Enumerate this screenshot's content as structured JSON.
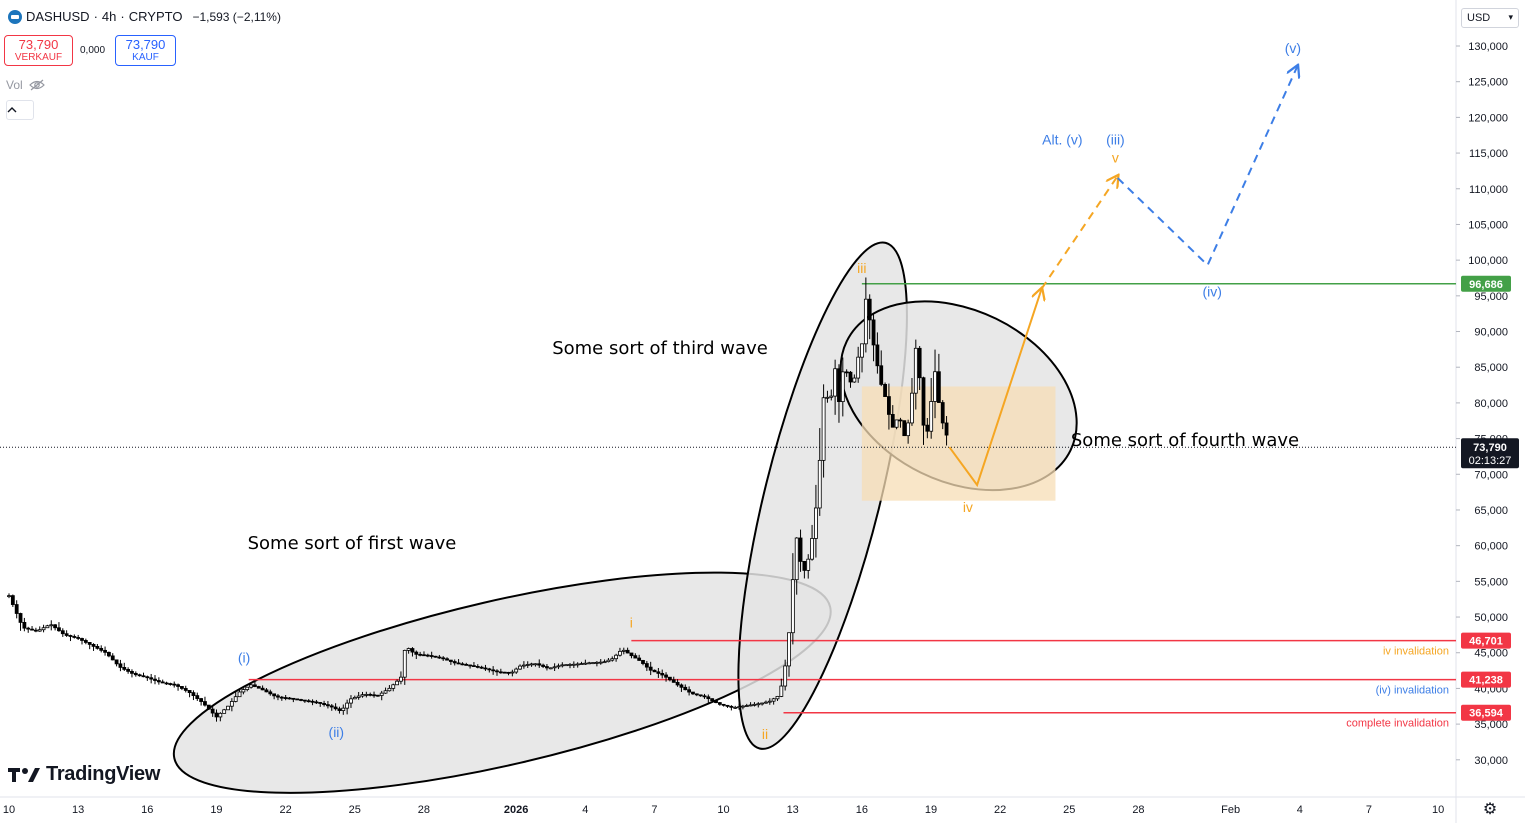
{
  "header": {
    "symbol": "DASHUSD",
    "separator": "·",
    "interval": "4h",
    "exchange": "CRYPTO",
    "change": "−1,593 (−2,11%)"
  },
  "trade": {
    "sell_price": "73,790",
    "sell_label": "VERKAUF",
    "spread": "0,000",
    "buy_price": "73,790",
    "buy_label": "KAUF"
  },
  "indicators": {
    "vol_label": "Vol",
    "collapse_icon": "chevron-up-icon"
  },
  "currency": "USD",
  "branding": {
    "logo_text": "TradingView"
  },
  "colors": {
    "bull": "#000000",
    "bear": "#000000",
    "green_level": "#43a047",
    "red_level": "#f23645",
    "orange": "#f5a623",
    "blue": "#3d7ee6",
    "ellipse_fill": "#e4e4e4",
    "box_fill": "#f7ddb5"
  },
  "chart_data": {
    "type": "candlestick",
    "title": "",
    "y_unit": "USD",
    "ylim": [
      25000,
      135000
    ],
    "yticks": [
      30000,
      35000,
      40000,
      45000,
      50000,
      55000,
      60000,
      65000,
      70000,
      75000,
      80000,
      85000,
      90000,
      95000,
      100000,
      105000,
      110000,
      115000,
      120000,
      125000,
      130000
    ],
    "ytick_labels": [
      "30,000",
      "35,000",
      "40,000",
      "45,000",
      "50,000",
      "55,000",
      "60,000",
      "65,000",
      "70,000",
      "75,000",
      "80,000",
      "85,000",
      "90,000",
      "95,000",
      "100,000",
      "105,000",
      "110,000",
      "115,000",
      "120,000",
      "125,000",
      "130,000"
    ],
    "x_axis": {
      "start_day": 10,
      "end_day": 41,
      "ticks": [
        {
          "day": 10,
          "label": "10"
        },
        {
          "day": 13,
          "label": "13"
        },
        {
          "day": 16,
          "label": "16"
        },
        {
          "day": 19,
          "label": "19"
        },
        {
          "day": 22,
          "label": "22"
        },
        {
          "day": 25,
          "label": "25"
        },
        {
          "day": 28,
          "label": "28"
        },
        {
          "day": 32,
          "label": "2026"
        },
        {
          "day": 35,
          "label": "4"
        },
        {
          "day": 38,
          "label": "7"
        },
        {
          "day": 41,
          "label": "10"
        },
        {
          "day": 44,
          "label": "13"
        },
        {
          "day": 47,
          "label": "16"
        },
        {
          "day": 50,
          "label": "19"
        },
        {
          "day": 53,
          "label": "22"
        },
        {
          "day": 56,
          "label": "25"
        },
        {
          "day": 59,
          "label": "28"
        },
        {
          "day": 63,
          "label": "Feb"
        },
        {
          "day": 66,
          "label": "4"
        },
        {
          "day": 69,
          "label": "7"
        },
        {
          "day": 72,
          "label": "10"
        }
      ]
    },
    "price_path": [
      [
        10.0,
        53000
      ],
      [
        10.6,
        48500
      ],
      [
        11.2,
        48000
      ],
      [
        11.8,
        49000
      ],
      [
        12.4,
        47500
      ],
      [
        13.0,
        47000
      ],
      [
        13.6,
        46000
      ],
      [
        14.2,
        45000
      ],
      [
        14.8,
        43000
      ],
      [
        15.4,
        42000
      ],
      [
        16.0,
        41500
      ],
      [
        16.6,
        40800
      ],
      [
        17.2,
        40500
      ],
      [
        17.8,
        39500
      ],
      [
        18.4,
        38000
      ],
      [
        19.0,
        36000
      ],
      [
        19.5,
        37500
      ],
      [
        20.0,
        39500
      ],
      [
        20.5,
        40500
      ],
      [
        21.0,
        39800
      ],
      [
        21.6,
        38800
      ],
      [
        22.2,
        38600
      ],
      [
        22.8,
        38300
      ],
      [
        23.4,
        38000
      ],
      [
        24.0,
        37400
      ],
      [
        24.4,
        36800
      ],
      [
        24.8,
        38500
      ],
      [
        25.4,
        39200
      ],
      [
        26.0,
        39000
      ],
      [
        26.5,
        40000
      ],
      [
        27.0,
        41500
      ],
      [
        27.2,
        46000
      ],
      [
        27.6,
        44800
      ],
      [
        28.2,
        44600
      ],
      [
        28.8,
        44200
      ],
      [
        29.4,
        43500
      ],
      [
        30.0,
        43200
      ],
      [
        30.6,
        42800
      ],
      [
        31.2,
        42300
      ],
      [
        31.8,
        42200
      ],
      [
        32.2,
        43200
      ],
      [
        32.8,
        43500
      ],
      [
        33.4,
        42800
      ],
      [
        34.0,
        43300
      ],
      [
        34.6,
        43400
      ],
      [
        35.2,
        43600
      ],
      [
        35.8,
        43700
      ],
      [
        36.2,
        44200
      ],
      [
        36.6,
        45500
      ],
      [
        37.0,
        44600
      ],
      [
        37.4,
        43800
      ],
      [
        37.8,
        42600
      ],
      [
        38.4,
        41800
      ],
      [
        39.0,
        40500
      ],
      [
        39.6,
        39300
      ],
      [
        40.2,
        38800
      ],
      [
        40.8,
        37800
      ],
      [
        41.4,
        37300
      ],
      [
        42.0,
        37600
      ],
      [
        42.6,
        37900
      ],
      [
        43.0,
        38200
      ],
      [
        43.4,
        39000
      ],
      [
        43.6,
        41500
      ],
      [
        43.8,
        46000
      ],
      [
        44.0,
        55000
      ],
      [
        44.2,
        62000
      ],
      [
        44.4,
        56000
      ],
      [
        44.6,
        57000
      ],
      [
        44.8,
        60000
      ],
      [
        45.0,
        65000
      ],
      [
        45.2,
        73000
      ],
      [
        45.4,
        84000
      ],
      [
        45.6,
        78000
      ],
      [
        45.8,
        86000
      ],
      [
        46.0,
        80000
      ],
      [
        46.2,
        85000
      ],
      [
        46.4,
        84000
      ],
      [
        46.6,
        82000
      ],
      [
        46.8,
        86000
      ],
      [
        47.0,
        88000
      ],
      [
        47.2,
        95500
      ],
      [
        47.4,
        90000
      ],
      [
        47.6,
        86500
      ],
      [
        47.8,
        83000
      ],
      [
        48.0,
        81000
      ],
      [
        48.2,
        78000
      ],
      [
        48.4,
        76000
      ],
      [
        48.6,
        79000
      ],
      [
        48.8,
        75000
      ],
      [
        49.0,
        77000
      ],
      [
        49.2,
        82000
      ],
      [
        49.4,
        90000
      ],
      [
        49.6,
        78000
      ],
      [
        49.8,
        75000
      ],
      [
        50.0,
        80000
      ],
      [
        50.2,
        85000
      ],
      [
        50.4,
        78000
      ],
      [
        50.6,
        76500
      ],
      [
        50.8,
        73800
      ]
    ],
    "horizontal_levels": [
      {
        "price": 96686,
        "label": "96,686",
        "color": "#43a047",
        "start_day": 47.0
      },
      {
        "price": 46701,
        "label": "46,701",
        "color": "#f23645",
        "start_day": 37.0,
        "note": "iv invalidation",
        "note_color": "#f5a623"
      },
      {
        "price": 41238,
        "label": "41,238",
        "color": "#f23645",
        "start_day": 20.4,
        "note": "(iv) invalidation",
        "note_color": "#3d7ee6"
      },
      {
        "price": 36594,
        "label": "36,594",
        "color": "#f23645",
        "start_day": 43.6,
        "note": "complete invalidation",
        "note_color": "#f23645"
      }
    ],
    "current_price": {
      "price": 73790,
      "label": "73,790",
      "countdown": "02:13:27"
    },
    "ellipses": [
      {
        "label": "Some sort of first wave",
        "cx_day": 31.4,
        "cy_price": 40800,
        "rx_days": 14.6,
        "ry_price": 11500,
        "angle": -13
      },
      {
        "label": "Some sort of third wave",
        "cx_day": 45.3,
        "cy_price": 67000,
        "rx_days": 2.5,
        "ry_price": 36500,
        "angle": 14
      },
      {
        "label": "Some sort of fourth wave",
        "cx_day": 51.2,
        "cy_price": 81000,
        "rx_days": 5.4,
        "ry_price": 12000,
        "angle": 26
      }
    ],
    "box": {
      "start_day": 47.0,
      "end_day": 55.4,
      "top": 82300,
      "bottom": 66300
    },
    "wave_labels": [
      {
        "text": "i",
        "day": 37.0,
        "price": 48500,
        "color": "#f5a623"
      },
      {
        "text": "ii",
        "day": 42.8,
        "price": 32900,
        "color": "#f5a623"
      },
      {
        "text": "iii",
        "day": 47.0,
        "price": 98200,
        "color": "#f5a623"
      },
      {
        "text": "iv",
        "day": 51.6,
        "price": 64700,
        "color": "#f5a623"
      },
      {
        "text": "v",
        "day": 58.0,
        "price": 113700,
        "color": "#f5a623"
      },
      {
        "text": "(i)",
        "day": 20.2,
        "price": 43600,
        "color": "#3d7ee6"
      },
      {
        "text": "(ii)",
        "day": 24.2,
        "price": 33200,
        "color": "#3d7ee6"
      },
      {
        "text": "(iii)",
        "day": 58.0,
        "price": 116200,
        "color": "#3d7ee6"
      },
      {
        "text": "(iv)",
        "day": 62.2,
        "price": 94900,
        "color": "#3d7ee6"
      },
      {
        "text": "(v)",
        "day": 65.7,
        "price": 129000,
        "color": "#3d7ee6"
      },
      {
        "text": "Alt. (v)",
        "day": 55.7,
        "price": 116200,
        "color": "#3d7ee6"
      }
    ],
    "projections": [
      {
        "color": "#f5a623",
        "style": "solid",
        "points": [
          [
            50.8,
            73800
          ],
          [
            52.0,
            68500
          ],
          [
            54.8,
            96000
          ]
        ],
        "arrow": true
      },
      {
        "color": "#f5a623",
        "style": "dashed",
        "points": [
          [
            54.8,
            96000
          ],
          [
            58.1,
            111800
          ]
        ],
        "arrow": true
      },
      {
        "color": "#3d7ee6",
        "style": "dashed",
        "points": [
          [
            58.1,
            111500
          ],
          [
            62.0,
            99300
          ],
          [
            65.9,
            127200
          ]
        ],
        "arrow": true
      }
    ]
  }
}
